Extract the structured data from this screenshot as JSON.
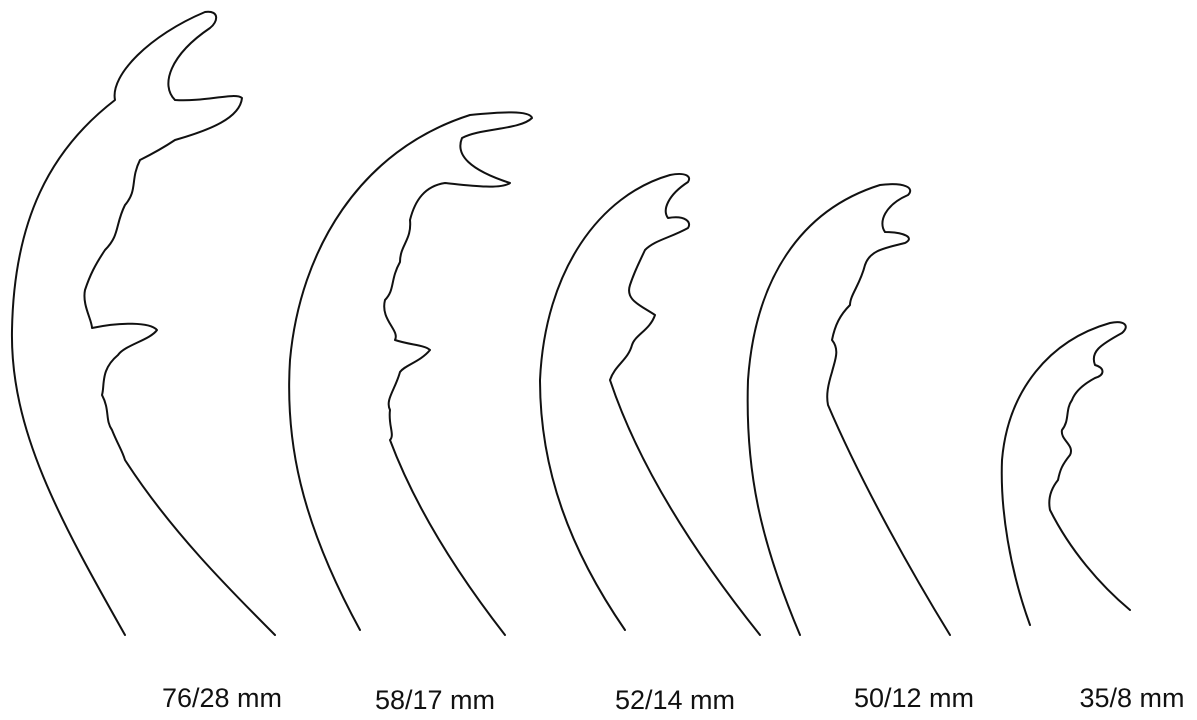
{
  "labels": [
    "76/28 mm",
    "58/17 mm",
    "52/14 mm",
    "50/12 mm",
    "35/8 mm"
  ]
}
